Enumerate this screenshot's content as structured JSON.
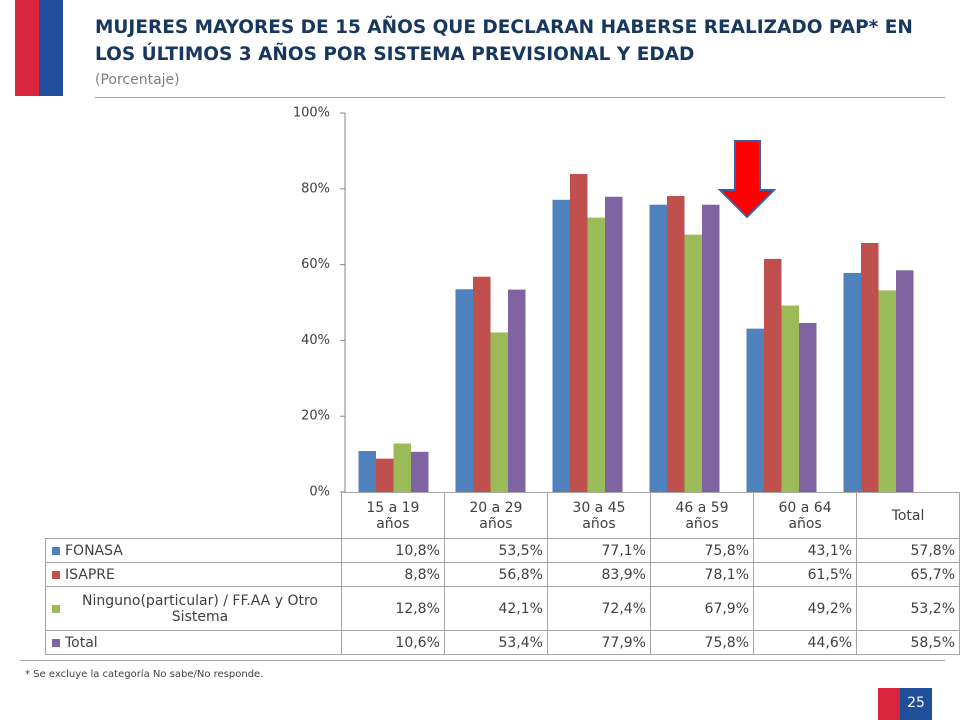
{
  "chart_data": {
    "type": "bar",
    "title": "MUJERES MAYORES DE 15 AÑOS QUE DECLARAN HABERSE REALIZADO PAP* EN LOS ÚLTIMOS 3 AÑOS POR SISTEMA PREVISIONAL Y EDAD",
    "subtitle": "(Porcentaje)",
    "categories": [
      "15 a 19 años",
      "20 a 29 años",
      "30 a 45 años",
      "46 a 59 años",
      "60 a 64 años",
      "Total"
    ],
    "series": [
      {
        "name": "FONASA",
        "color": "#4f81bd",
        "values": [
          10.8,
          53.5,
          77.1,
          75.8,
          43.1,
          57.8
        ],
        "value_labels": [
          "10,8%",
          "53,5%",
          "77,1%",
          "75,8%",
          "43,1%",
          "57,8%"
        ]
      },
      {
        "name": "ISAPRE",
        "color": "#c0504d",
        "values": [
          8.8,
          56.8,
          83.9,
          78.1,
          61.5,
          65.7
        ],
        "value_labels": [
          "8,8%",
          "56,8%",
          "83,9%",
          "78,1%",
          "61,5%",
          "65,7%"
        ]
      },
      {
        "name": "Ninguno(particular) / FF.AA y Otro Sistema",
        "color": "#9bbb59",
        "values": [
          12.8,
          42.1,
          72.4,
          67.9,
          49.2,
          53.2
        ],
        "value_labels": [
          "12,8%",
          "42,1%",
          "72,4%",
          "67,9%",
          "49,2%",
          "53,2%"
        ]
      },
      {
        "name": "Total",
        "color": "#8064a2",
        "values": [
          10.6,
          53.4,
          77.9,
          75.8,
          44.6,
          58.5
        ],
        "value_labels": [
          "10,6%",
          "53,4%",
          "77,9%",
          "75,8%",
          "44,6%",
          "58,5%"
        ]
      }
    ],
    "ylim": [
      0,
      100
    ],
    "yticks": [
      {
        "value": 0,
        "label": "0%"
      },
      {
        "value": 20,
        "label": "20%"
      },
      {
        "value": 40,
        "label": "40%"
      },
      {
        "value": 60,
        "label": "60%"
      },
      {
        "value": 80,
        "label": "80%"
      },
      {
        "value": 100,
        "label": "100%"
      }
    ],
    "footnote": "* Se excluye la categoría No sabe/No responde.",
    "page_number": "25"
  }
}
